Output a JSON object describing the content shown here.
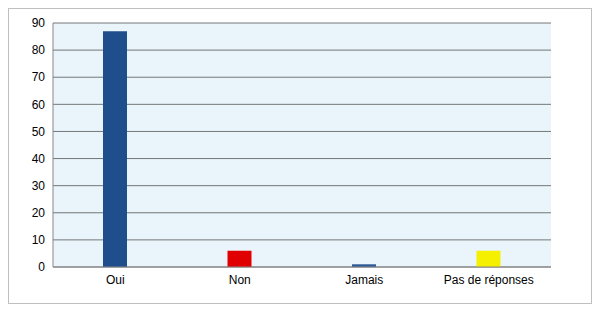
{
  "chart_data": {
    "type": "bar",
    "categories": [
      "Oui",
      "Non",
      "Jamais",
      "Pas de réponses"
    ],
    "values": [
      87,
      6,
      1,
      6
    ],
    "colors": [
      "#1f4e8c",
      "#e00000",
      "#2e5a96",
      "#f5f000"
    ],
    "ylim": [
      0,
      90
    ],
    "yticks": [
      0,
      10,
      20,
      30,
      40,
      50,
      60,
      70,
      80,
      90
    ],
    "grid": true
  }
}
